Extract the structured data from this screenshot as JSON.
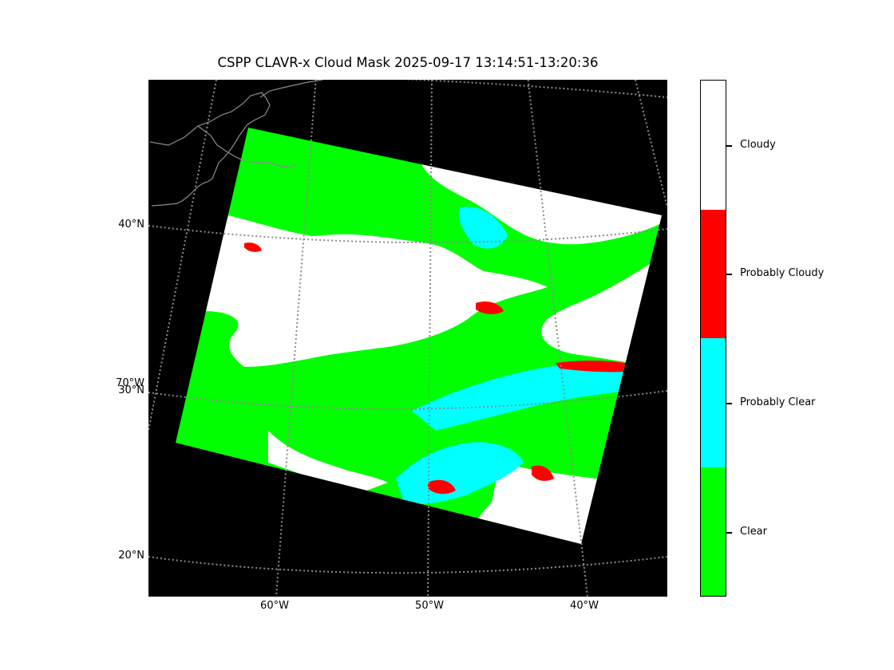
{
  "title": "CSPP CLAVR-x Cloud Mask 2025-09-17 13:14:51-13:20:36",
  "map": {
    "lat_labels": [
      "40°N",
      "30°N",
      "20°N"
    ],
    "lon_labels": [
      "60°W",
      "50°W",
      "40°W"
    ],
    "edge_label": "70°W",
    "colors": {
      "background": "#000000",
      "graticule": "#8c8c8c",
      "coastline": "#8c8c8c",
      "clear": "#00ff00",
      "probably_clear": "#00ffff",
      "probably_cloudy": "#ff0000",
      "cloudy": "#ffffff"
    }
  },
  "colorbar": {
    "categories": [
      {
        "label": "Cloudy",
        "color": "#ffffff"
      },
      {
        "label": "Probably Cloudy",
        "color": "#ff0000"
      },
      {
        "label": "Probably Clear",
        "color": "#00ffff"
      },
      {
        "label": "Clear",
        "color": "#00ff00"
      }
    ]
  }
}
